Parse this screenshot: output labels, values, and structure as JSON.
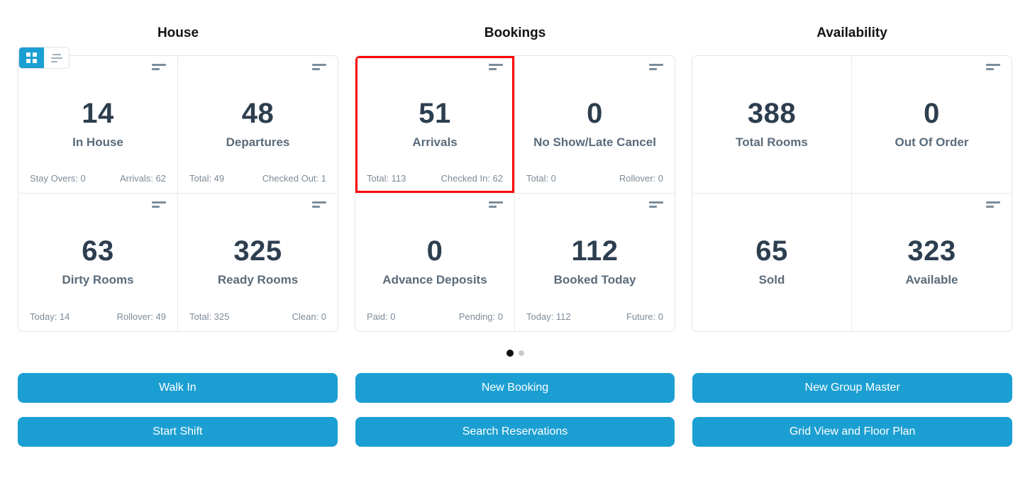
{
  "view_toggle": {
    "active_view": "grid",
    "views": [
      "grid",
      "list"
    ]
  },
  "sections": [
    {
      "title": "House",
      "cards": [
        {
          "value": "14",
          "label": "In House",
          "icon": true,
          "highlighted": false,
          "stat_left": "Stay Overs: 0",
          "stat_right": "Arrivals: 62"
        },
        {
          "value": "48",
          "label": "Departures",
          "icon": true,
          "highlighted": false,
          "stat_left": "Total: 49",
          "stat_right": "Checked Out: 1"
        },
        {
          "value": "63",
          "label": "Dirty Rooms",
          "icon": true,
          "highlighted": false,
          "stat_left": "Today: 14",
          "stat_right": "Rollover: 49"
        },
        {
          "value": "325",
          "label": "Ready Rooms",
          "icon": true,
          "highlighted": false,
          "stat_left": "Total: 325",
          "stat_right": "Clean: 0"
        }
      ]
    },
    {
      "title": "Bookings",
      "cards": [
        {
          "value": "51",
          "label": "Arrivals",
          "icon": true,
          "highlighted": true,
          "stat_left": "Total: 113",
          "stat_right": "Checked In: 62"
        },
        {
          "value": "0",
          "label": "No Show/Late Cancel",
          "icon": true,
          "highlighted": false,
          "stat_left": "Total: 0",
          "stat_right": "Rollover: 0"
        },
        {
          "value": "0",
          "label": "Advance Deposits",
          "icon": true,
          "highlighted": false,
          "stat_left": "Paid: 0",
          "stat_right": "Pending: 0"
        },
        {
          "value": "112",
          "label": "Booked Today",
          "icon": true,
          "highlighted": false,
          "stat_left": "Today: 112",
          "stat_right": "Future: 0"
        }
      ]
    },
    {
      "title": "Availability",
      "cards": [
        {
          "value": "388",
          "label": "Total Rooms",
          "icon": false,
          "highlighted": false
        },
        {
          "value": "0",
          "label": "Out Of Order",
          "icon": true,
          "highlighted": false
        },
        {
          "value": "65",
          "label": "Sold",
          "icon": false,
          "highlighted": false
        },
        {
          "value": "323",
          "label": "Available",
          "icon": true,
          "highlighted": false
        }
      ]
    }
  ],
  "pagination": {
    "dots": 2,
    "active_index": 0
  },
  "actions": {
    "buttons": [
      "Walk In",
      "New Booking",
      "New Group Master",
      "Start Shift",
      "Search Reservations",
      "Grid View and Floor Plan"
    ]
  },
  "colors": {
    "accent_blue": "#1B9FD2",
    "highlight_red": "#FF0000",
    "number_text": "#2D3E4F",
    "label_text": "#5A6B7B",
    "stat_text": "#7D8B99",
    "active_dot": "#111111",
    "inactive_dot": "#CBCBCB"
  }
}
